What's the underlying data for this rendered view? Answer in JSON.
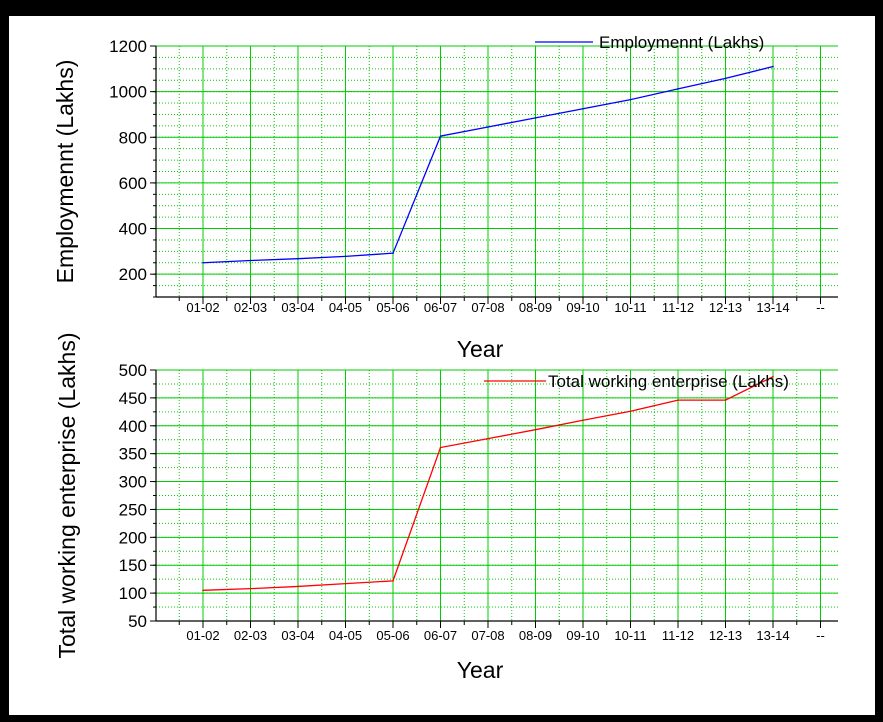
{
  "chart_data": [
    {
      "type": "line",
      "title": "",
      "xlabel": "Year",
      "ylabel": "Employmennt (Lakhs)",
      "categories": [
        "01-02",
        "02-03",
        "03-04",
        "04-05",
        "05-06",
        "06-07",
        "07-08",
        "08-09",
        "09-10",
        "10-11",
        "11-12",
        "12-13",
        "13-14",
        "--"
      ],
      "series": [
        {
          "name": "Employmennt (Lakhs)",
          "color": "#0000ff",
          "values": [
            250,
            260,
            268,
            278,
            292,
            805,
            845,
            885,
            925,
            965,
            1012,
            1058,
            1110,
            null
          ]
        }
      ],
      "ylim": [
        100,
        1200
      ],
      "yticks": [
        "200",
        "400",
        "600",
        "800",
        "1000",
        "1200"
      ],
      "grid": true,
      "grid_color": "#00cc00",
      "legend_position": "top-right"
    },
    {
      "type": "line",
      "title": "",
      "xlabel": "Year",
      "ylabel": "Total working enterprise (Lakhs)",
      "categories": [
        "01-02",
        "02-03",
        "03-04",
        "04-05",
        "05-06",
        "06-07",
        "07-08",
        "08-09",
        "09-10",
        "10-11",
        "11-12",
        "12-13",
        "13-14",
        "--"
      ],
      "series": [
        {
          "name": "Total working enterprise (Lakhs)",
          "color": "#ff0000",
          "values": [
            105,
            108,
            112,
            117,
            122,
            361,
            377,
            393,
            410,
            426,
            446,
            446,
            488,
            null
          ]
        }
      ],
      "ylim": [
        50,
        500
      ],
      "yticks": [
        "50",
        "100",
        "150",
        "200",
        "250",
        "300",
        "350",
        "400",
        "450",
        "500"
      ],
      "grid": true,
      "grid_color": "#00cc00",
      "legend_position": "top-right"
    }
  ]
}
